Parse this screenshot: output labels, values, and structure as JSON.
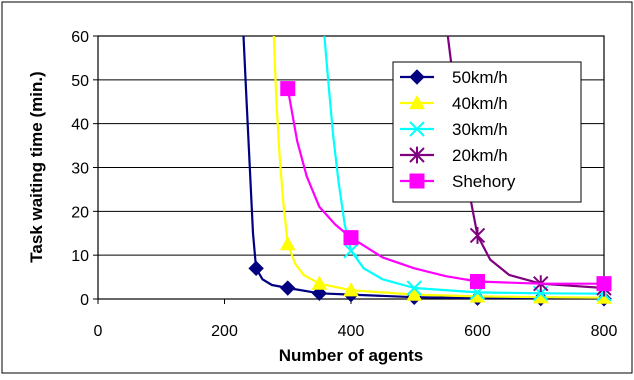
{
  "chart_data": {
    "type": "line",
    "title": "",
    "xlabel": "Number of agents",
    "ylabel": "Task waiting time (min.)",
    "xlim": [
      0,
      800
    ],
    "ylim": [
      0,
      60
    ],
    "xticks": [
      0,
      200,
      400,
      600,
      800
    ],
    "yticks": [
      0,
      10,
      20,
      30,
      40,
      50,
      60
    ],
    "grid": "horizontal",
    "legend_position": "top-right",
    "series": [
      {
        "name": "50km/h",
        "color": "#000080",
        "marker": "diamond",
        "points": [
          [
            250,
            7
          ],
          [
            300,
            2.5
          ],
          [
            350,
            1.3
          ],
          [
            400,
            1
          ],
          [
            500,
            0.4
          ],
          [
            600,
            0.2
          ],
          [
            700,
            0.1
          ],
          [
            800,
            0.05
          ]
        ],
        "curve": [
          [
            230,
            60
          ],
          [
            235,
            45
          ],
          [
            240,
            30
          ],
          [
            245,
            15
          ],
          [
            250,
            7
          ],
          [
            260,
            4.5
          ],
          [
            275,
            3.2
          ],
          [
            300,
            2.5
          ],
          [
            350,
            1.3
          ],
          [
            400,
            1
          ],
          [
            500,
            0.4
          ],
          [
            600,
            0.2
          ],
          [
            700,
            0.1
          ],
          [
            800,
            0.05
          ]
        ]
      },
      {
        "name": "40km/h",
        "color": "#FFFF00",
        "marker": "triangle",
        "points": [
          [
            300,
            12.5
          ],
          [
            350,
            3.5
          ],
          [
            400,
            2
          ],
          [
            500,
            1
          ],
          [
            600,
            0.6
          ],
          [
            700,
            0.4
          ],
          [
            800,
            0.3
          ]
        ],
        "curve": [
          [
            278,
            60
          ],
          [
            282,
            45
          ],
          [
            287,
            33
          ],
          [
            293,
            22
          ],
          [
            300,
            12.5
          ],
          [
            312,
            8
          ],
          [
            325,
            5.5
          ],
          [
            350,
            3.5
          ],
          [
            400,
            2
          ],
          [
            500,
            1
          ],
          [
            600,
            0.6
          ],
          [
            700,
            0.4
          ],
          [
            800,
            0.3
          ]
        ]
      },
      {
        "name": "30km/h",
        "color": "#00FFFF",
        "marker": "x",
        "points": [
          [
            400,
            11
          ],
          [
            500,
            2.5
          ],
          [
            600,
            1.5
          ],
          [
            700,
            1.3
          ],
          [
            800,
            1.2
          ]
        ],
        "curve": [
          [
            358,
            60
          ],
          [
            365,
            48
          ],
          [
            372,
            37
          ],
          [
            380,
            27
          ],
          [
            390,
            17
          ],
          [
            400,
            11
          ],
          [
            420,
            7
          ],
          [
            450,
            4.5
          ],
          [
            500,
            2.5
          ],
          [
            600,
            1.5
          ],
          [
            700,
            1.3
          ],
          [
            800,
            1.2
          ]
        ]
      },
      {
        "name": "20km/h",
        "color": "#800080",
        "marker": "star",
        "points": [
          [
            600,
            14.5
          ],
          [
            700,
            3.5
          ],
          [
            800,
            2.5
          ]
        ],
        "curve": [
          [
            553,
            60
          ],
          [
            560,
            52
          ],
          [
            570,
            40
          ],
          [
            580,
            30
          ],
          [
            590,
            22
          ],
          [
            600,
            14.5
          ],
          [
            620,
            9
          ],
          [
            650,
            5.5
          ],
          [
            700,
            3.5
          ],
          [
            800,
            2.5
          ]
        ]
      },
      {
        "name": "Shehory",
        "color": "#FF00FF",
        "marker": "square",
        "points": [
          [
            300,
            48
          ],
          [
            400,
            14
          ],
          [
            600,
            4
          ],
          [
            800,
            3.5
          ]
        ],
        "curve": [
          [
            300,
            48
          ],
          [
            315,
            36
          ],
          [
            330,
            28
          ],
          [
            350,
            21
          ],
          [
            375,
            17
          ],
          [
            400,
            14
          ],
          [
            450,
            9.5
          ],
          [
            500,
            7
          ],
          [
            550,
            5.2
          ],
          [
            600,
            4
          ],
          [
            700,
            3.5
          ],
          [
            800,
            3.5
          ]
        ]
      }
    ]
  }
}
